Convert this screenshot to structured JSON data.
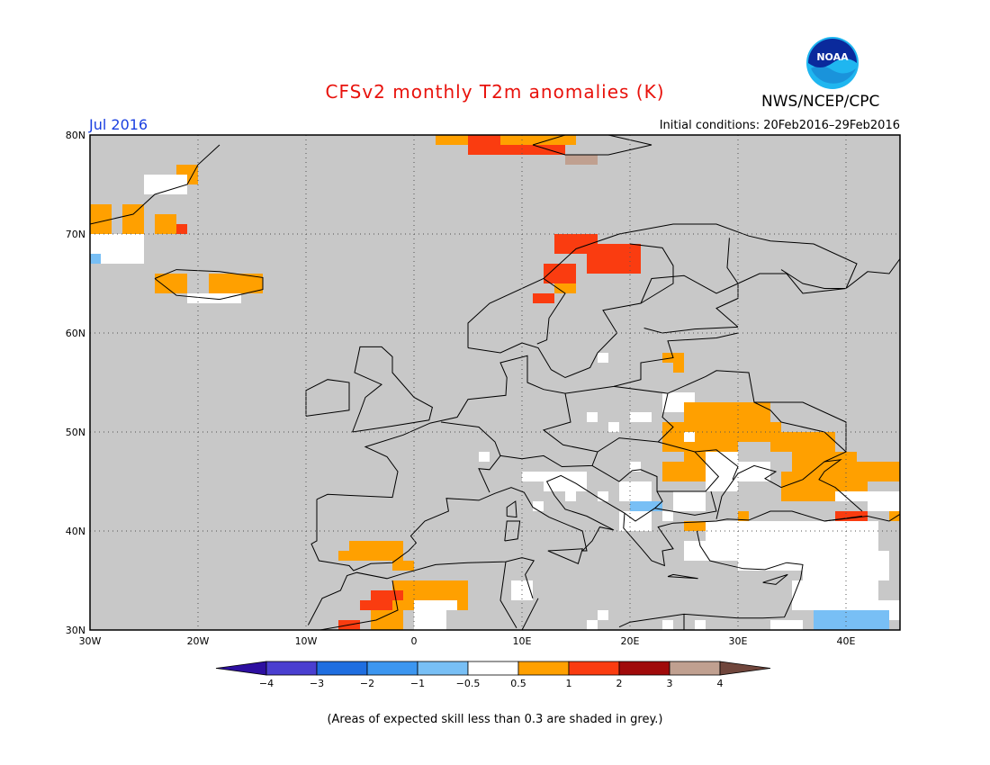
{
  "title": "CFSv2 monthly T2m anomalies (K)",
  "month": "Jul 2016",
  "initial_conditions": "Initial conditions: 20Feb2016–29Feb2016",
  "agency": "NWS/NCEP/CPC",
  "logo_text": "NOAA",
  "footer_note": "(Areas of expected skill less than 0.3 are shaded in grey.)",
  "map": {
    "lat_labels": [
      "80N",
      "70N",
      "60N",
      "50N",
      "40N",
      "30N"
    ],
    "lon_labels": [
      "30W",
      "20W",
      "10W",
      "0",
      "10E",
      "20E",
      "30E",
      "40E"
    ],
    "no_skill_color": "#c8c8c8"
  },
  "colorbar": {
    "labels": [
      "−4",
      "−3",
      "−2",
      "−1",
      "−0.5",
      "0.5",
      "1",
      "2",
      "3",
      "4"
    ],
    "colors": [
      "#2d0fa0",
      "#4a3fd0",
      "#1f6ee0",
      "#3c96f0",
      "#78bff5",
      "#ffffff",
      "#ffa000",
      "#fa3c10",
      "#a00a0a",
      "#c0a090",
      "#70463c"
    ]
  }
}
